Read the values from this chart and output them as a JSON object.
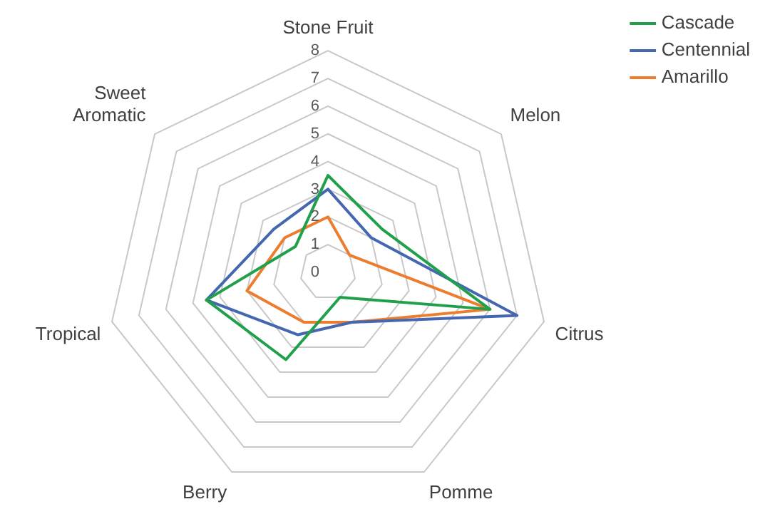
{
  "chart_data": {
    "type": "radar",
    "categories": [
      "Stone Fruit",
      "Melon",
      "Citrus",
      "Pomme",
      "Berry",
      "Tropical",
      "Sweet Aromatic"
    ],
    "series": [
      {
        "name": "Cascade",
        "color": "#21a04b",
        "values": [
          3.5,
          2.5,
          6,
          1,
          3.5,
          4.5,
          1.5
        ]
      },
      {
        "name": "Centennial",
        "color": "#4467b0",
        "values": [
          3,
          2,
          7,
          2,
          2.5,
          4.5,
          2.5
        ]
      },
      {
        "name": "Amarillo",
        "color": "#ec7d2f",
        "values": [
          2,
          1,
          6,
          2,
          2,
          3,
          2
        ]
      }
    ],
    "ylim": [
      0,
      8
    ],
    "yticks": [
      0,
      1,
      2,
      3,
      4,
      5,
      6,
      7,
      8
    ],
    "grid": true,
    "legend": "top right",
    "marker": "none"
  }
}
